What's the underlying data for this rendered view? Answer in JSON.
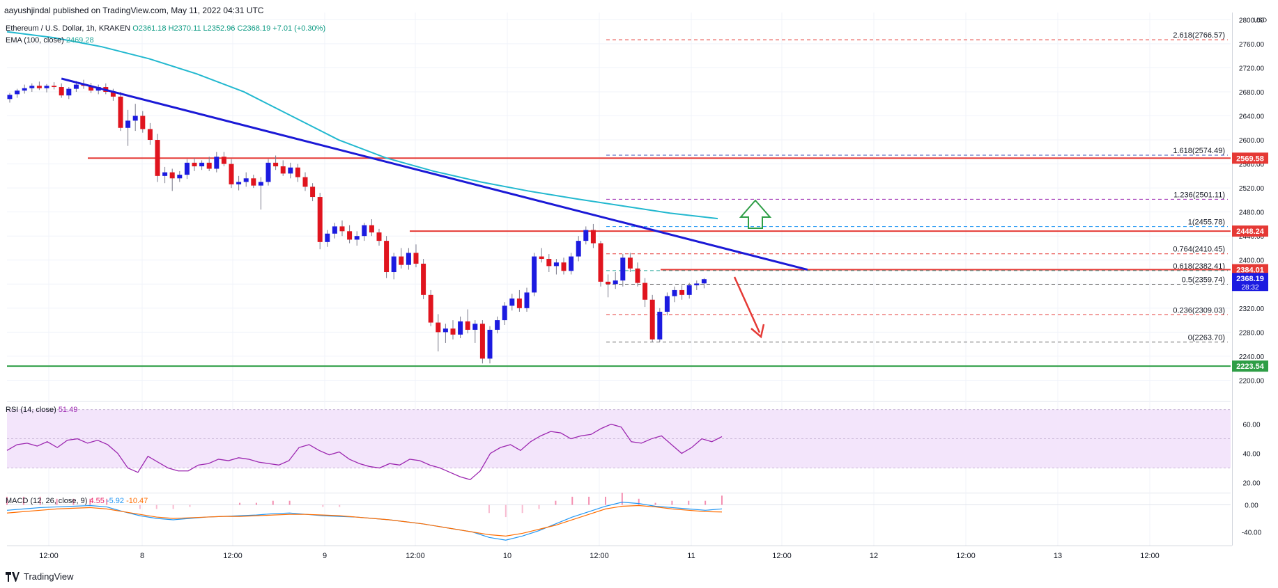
{
  "credit": "aayushjindal published on TradingView.com, May 11, 2022 04:31 UTC",
  "legend": {
    "symbol": "Ethereum / U.S. Dollar, 1h, KRAKEN",
    "open": "O2361.18",
    "high": "H2370.11",
    "low": "L2352.96",
    "close": "C2368.19",
    "change": "+7.01 (+0.30%)",
    "ema_label": "EMA (100, close)",
    "ema_value": "2469.28",
    "rsi_label": "RSI (14, close)",
    "rsi_value": "51.49",
    "macd_label": "MACD (12, 26, close, 9)",
    "macd_hist": "4.55",
    "macd_line": "-5.92",
    "macd_signal": "-10.47"
  },
  "axis_unit": "USD",
  "footer": "TradingView",
  "colors": {
    "up": "#089981",
    "down": "#f23645",
    "trendline": "#1b19d6",
    "ema": "#22b8cf",
    "resistance": "#e53935",
    "support": "#2e9e46",
    "rsi": "#9c27b0",
    "rsi_band": "#f3e5fb",
    "macd_line": "#2196f3",
    "macd_signal": "#ff6d00",
    "macd_hist": "#f48fb1"
  },
  "chart_data": [
    {
      "type": "candlestick",
      "title": "",
      "y_ticks": [
        2800,
        2760,
        2720,
        2680,
        2640,
        2600,
        2560,
        2520,
        2480,
        2440,
        2400,
        2360,
        2320,
        2280,
        2240,
        2200
      ],
      "y_tick_labels": [
        "2800.00",
        "2760.00",
        "2720.00",
        "2680.00",
        "2640.00",
        "2600.00",
        "2560.00",
        "2520.00",
        "2480.00",
        "2440.00",
        "2400.00",
        "2360.00",
        "2320.00",
        "2280.00",
        "2240.00",
        "2200.00"
      ],
      "ylim": [
        2182,
        2805
      ],
      "x_ticks": [
        "12:00",
        "8",
        "12:00",
        "9",
        "12:00",
        "10",
        "12:00",
        "11",
        "12:00",
        "12",
        "12:00",
        "13",
        "12:00"
      ],
      "candles": [
        [
          2668,
          2678,
          2662,
          2675
        ],
        [
          2676,
          2685,
          2670,
          2682
        ],
        [
          2682,
          2692,
          2677,
          2686
        ],
        [
          2686,
          2694,
          2680,
          2690
        ],
        [
          2690,
          2697,
          2683,
          2686
        ],
        [
          2686,
          2693,
          2679,
          2690
        ],
        [
          2690,
          2696,
          2684,
          2688
        ],
        [
          2688,
          2694,
          2670,
          2674
        ],
        [
          2674,
          2688,
          2668,
          2685
        ],
        [
          2685,
          2698,
          2680,
          2692
        ],
        [
          2692,
          2700,
          2685,
          2690
        ],
        [
          2690,
          2695,
          2678,
          2682
        ],
        [
          2682,
          2692,
          2676,
          2688
        ],
        [
          2688,
          2694,
          2676,
          2680
        ],
        [
          2680,
          2685,
          2665,
          2672
        ],
        [
          2672,
          2680,
          2615,
          2620
        ],
        [
          2620,
          2650,
          2590,
          2632
        ],
        [
          2632,
          2660,
          2615,
          2640
        ],
        [
          2640,
          2648,
          2612,
          2618
        ],
        [
          2618,
          2628,
          2592,
          2600
        ],
        [
          2600,
          2610,
          2530,
          2540
        ],
        [
          2540,
          2555,
          2528,
          2546
        ],
        [
          2546,
          2552,
          2515,
          2536
        ],
        [
          2536,
          2548,
          2530,
          2542
        ],
        [
          2542,
          2568,
          2535,
          2562
        ],
        [
          2562,
          2570,
          2548,
          2556
        ],
        [
          2556,
          2566,
          2550,
          2562
        ],
        [
          2562,
          2572,
          2548,
          2552
        ],
        [
          2552,
          2580,
          2546,
          2572
        ],
        [
          2572,
          2580,
          2556,
          2560
        ],
        [
          2560,
          2568,
          2520,
          2526
        ],
        [
          2526,
          2540,
          2516,
          2530
        ],
        [
          2530,
          2546,
          2522,
          2536
        ],
        [
          2536,
          2542,
          2520,
          2524
        ],
        [
          2524,
          2538,
          2484,
          2530
        ],
        [
          2530,
          2568,
          2524,
          2562
        ],
        [
          2562,
          2574,
          2550,
          2556
        ],
        [
          2556,
          2566,
          2540,
          2544
        ],
        [
          2544,
          2562,
          2536,
          2554
        ],
        [
          2554,
          2560,
          2530,
          2538
        ],
        [
          2538,
          2546,
          2515,
          2522
        ],
        [
          2522,
          2528,
          2498,
          2505
        ],
        [
          2505,
          2512,
          2418,
          2430
        ],
        [
          2430,
          2450,
          2422,
          2444
        ],
        [
          2444,
          2462,
          2436,
          2456
        ],
        [
          2456,
          2466,
          2440,
          2448
        ],
        [
          2448,
          2458,
          2428,
          2434
        ],
        [
          2434,
          2448,
          2424,
          2440
        ],
        [
          2440,
          2462,
          2432,
          2458
        ],
        [
          2458,
          2468,
          2440,
          2446
        ],
        [
          2446,
          2452,
          2424,
          2432
        ],
        [
          2432,
          2440,
          2370,
          2380
        ],
        [
          2380,
          2412,
          2368,
          2406
        ],
        [
          2406,
          2420,
          2386,
          2392
        ],
        [
          2392,
          2420,
          2384,
          2412
        ],
        [
          2412,
          2426,
          2388,
          2394
        ],
        [
          2394,
          2402,
          2335,
          2342
        ],
        [
          2342,
          2350,
          2290,
          2296
        ],
        [
          2296,
          2310,
          2248,
          2280
        ],
        [
          2280,
          2294,
          2262,
          2286
        ],
        [
          2286,
          2300,
          2268,
          2276
        ],
        [
          2276,
          2306,
          2270,
          2298
        ],
        [
          2298,
          2318,
          2278,
          2284
        ],
        [
          2284,
          2300,
          2262,
          2294
        ],
        [
          2294,
          2300,
          2228,
          2236
        ],
        [
          2236,
          2290,
          2228,
          2284
        ],
        [
          2284,
          2306,
          2278,
          2300
        ],
        [
          2300,
          2330,
          2292,
          2324
        ],
        [
          2324,
          2344,
          2316,
          2336
        ],
        [
          2336,
          2350,
          2314,
          2320
        ],
        [
          2320,
          2354,
          2314,
          2346
        ],
        [
          2346,
          2412,
          2340,
          2406
        ],
        [
          2406,
          2420,
          2396,
          2402
        ],
        [
          2402,
          2410,
          2380,
          2390
        ],
        [
          2390,
          2402,
          2376,
          2396
        ],
        [
          2396,
          2404,
          2376,
          2382
        ],
        [
          2382,
          2412,
          2376,
          2406
        ],
        [
          2406,
          2440,
          2398,
          2432
        ],
        [
          2432,
          2456,
          2426,
          2450
        ],
        [
          2450,
          2460,
          2420,
          2428
        ],
        [
          2428,
          2432,
          2356,
          2364
        ],
        [
          2364,
          2376,
          2338,
          2360
        ],
        [
          2360,
          2380,
          2352,
          2366
        ],
        [
          2366,
          2410,
          2356,
          2404
        ],
        [
          2404,
          2412,
          2380,
          2386
        ],
        [
          2386,
          2396,
          2356,
          2362
        ],
        [
          2362,
          2370,
          2322,
          2334
        ],
        [
          2334,
          2342,
          2264,
          2268
        ],
        [
          2268,
          2320,
          2264,
          2314
        ],
        [
          2314,
          2346,
          2308,
          2340
        ],
        [
          2340,
          2356,
          2330,
          2350
        ],
        [
          2350,
          2358,
          2334,
          2342
        ],
        [
          2342,
          2362,
          2336,
          2358
        ],
        [
          2358,
          2366,
          2350,
          2361
        ],
        [
          2361.18,
          2370.11,
          2352.96,
          2368.19
        ]
      ],
      "ema": [
        2780,
        2770,
        2755,
        2735,
        2710,
        2680,
        2640,
        2600,
        2570,
        2548,
        2530,
        2515,
        2502,
        2490,
        2478,
        2469
      ],
      "horizontal_lines": [
        {
          "price": 2569.58,
          "label": "2569.58",
          "kind": "resistance"
        },
        {
          "price": 2448.24,
          "label": "2448.24",
          "kind": "resistance"
        },
        {
          "price": 2384.01,
          "label": "2384.01",
          "kind": "resistance"
        },
        {
          "price": 2223.54,
          "label": "2223.54",
          "kind": "support"
        }
      ],
      "last_price": {
        "value": 2368.19,
        "label": "2368.19",
        "countdown": "28:32"
      },
      "fib_levels": [
        {
          "ratio": "2.618",
          "price": 2766.57,
          "label": "2.618(2766.57)",
          "color": "#e53935"
        },
        {
          "ratio": "1.618",
          "price": 2574.49,
          "label": "1.618(2574.49)",
          "color": "#3f51b5"
        },
        {
          "ratio": "1.236",
          "price": 2501.11,
          "label": "1.236(2501.11)",
          "color": "#9c27b0"
        },
        {
          "ratio": "1",
          "price": 2455.78,
          "label": "1(2455.78)",
          "color": "#2196f3"
        },
        {
          "ratio": "0.764",
          "price": 2410.45,
          "label": "0.764(2410.45)",
          "color": "#e53935"
        },
        {
          "ratio": "0.618",
          "price": 2382.41,
          "label": "0.618(2382.41)",
          "color": "#26a69a"
        },
        {
          "ratio": "0.5",
          "price": 2359.74,
          "label": "0.5(2359.74)",
          "color": "#616161"
        },
        {
          "ratio": "0.236",
          "price": 2309.03,
          "label": "0.236(2309.03)",
          "color": "#e53935"
        },
        {
          "ratio": "0",
          "price": 2263.7,
          "label": "0(2263.70)",
          "color": "#616161"
        }
      ],
      "trendline": {
        "from": [
          7,
          2702
        ],
        "to": [
          108,
          2384
        ]
      },
      "annotations": [
        {
          "kind": "up-arrow",
          "color": "#2e9e46"
        },
        {
          "kind": "down-arrow",
          "color": "#e53935"
        }
      ]
    },
    {
      "type": "line",
      "title": "RSI (14, close)",
      "y_ticks": [
        60,
        40,
        20
      ],
      "y_tick_labels": [
        "60.00",
        "40.00",
        "20.00"
      ],
      "ylim": [
        15,
        76
      ],
      "band": [
        30,
        70
      ],
      "values": [
        42,
        46,
        47,
        45,
        48,
        44,
        49,
        50,
        47,
        49,
        46,
        40,
        30,
        27,
        38,
        34,
        30,
        28,
        28,
        32,
        33,
        36,
        35,
        37,
        36,
        34,
        33,
        32,
        35,
        44,
        46,
        42,
        39,
        41,
        36,
        33,
        31,
        30,
        33,
        32,
        36,
        35,
        32,
        30,
        27,
        24,
        22,
        28,
        40,
        44,
        46,
        42,
        48,
        52,
        55,
        54,
        50,
        52,
        53,
        57,
        60,
        58,
        48,
        47,
        50,
        52,
        46,
        40,
        44,
        50,
        48,
        51.49
      ]
    },
    {
      "type": "line",
      "title": "MACD (12, 26, close, 9)",
      "y_ticks": [
        0,
        -40
      ],
      "y_tick_labels": [
        "0.00",
        "-40.00"
      ],
      "ylim": [
        -60,
        18
      ],
      "macd": [
        -8,
        -6,
        -4,
        -3,
        -2,
        -1,
        -3,
        -10,
        -16,
        -20,
        -22,
        -20,
        -18,
        -17,
        -16,
        -15,
        -13,
        -12,
        -14,
        -16,
        -17,
        -18,
        -20,
        -22,
        -25,
        -28,
        -32,
        -36,
        -40,
        -48,
        -52,
        -46,
        -38,
        -28,
        -18,
        -10,
        -2,
        4,
        2,
        -2,
        -4,
        -6,
        -8,
        -5.92
      ],
      "signal": [
        -12,
        -10,
        -8,
        -6,
        -5,
        -4,
        -6,
        -10,
        -14,
        -18,
        -20,
        -19,
        -18,
        -17,
        -17,
        -16,
        -15,
        -14,
        -14,
        -15,
        -16,
        -18,
        -20,
        -22,
        -25,
        -28,
        -32,
        -36,
        -40,
        -44,
        -46,
        -42,
        -36,
        -30,
        -22,
        -14,
        -6,
        -2,
        -1,
        -3,
        -6,
        -8,
        -10,
        -10.47
      ],
      "histogram": [
        4,
        4,
        4,
        3,
        3,
        3,
        3,
        0,
        -2,
        -2,
        -2,
        -1,
        0,
        0,
        1,
        1,
        2,
        2,
        0,
        -1,
        -1,
        0,
        0,
        0,
        0,
        0,
        0,
        0,
        0,
        -4,
        -6,
        -4,
        -2,
        2,
        4,
        4,
        4,
        6,
        3,
        1,
        2,
        2,
        2,
        4.55
      ]
    }
  ]
}
